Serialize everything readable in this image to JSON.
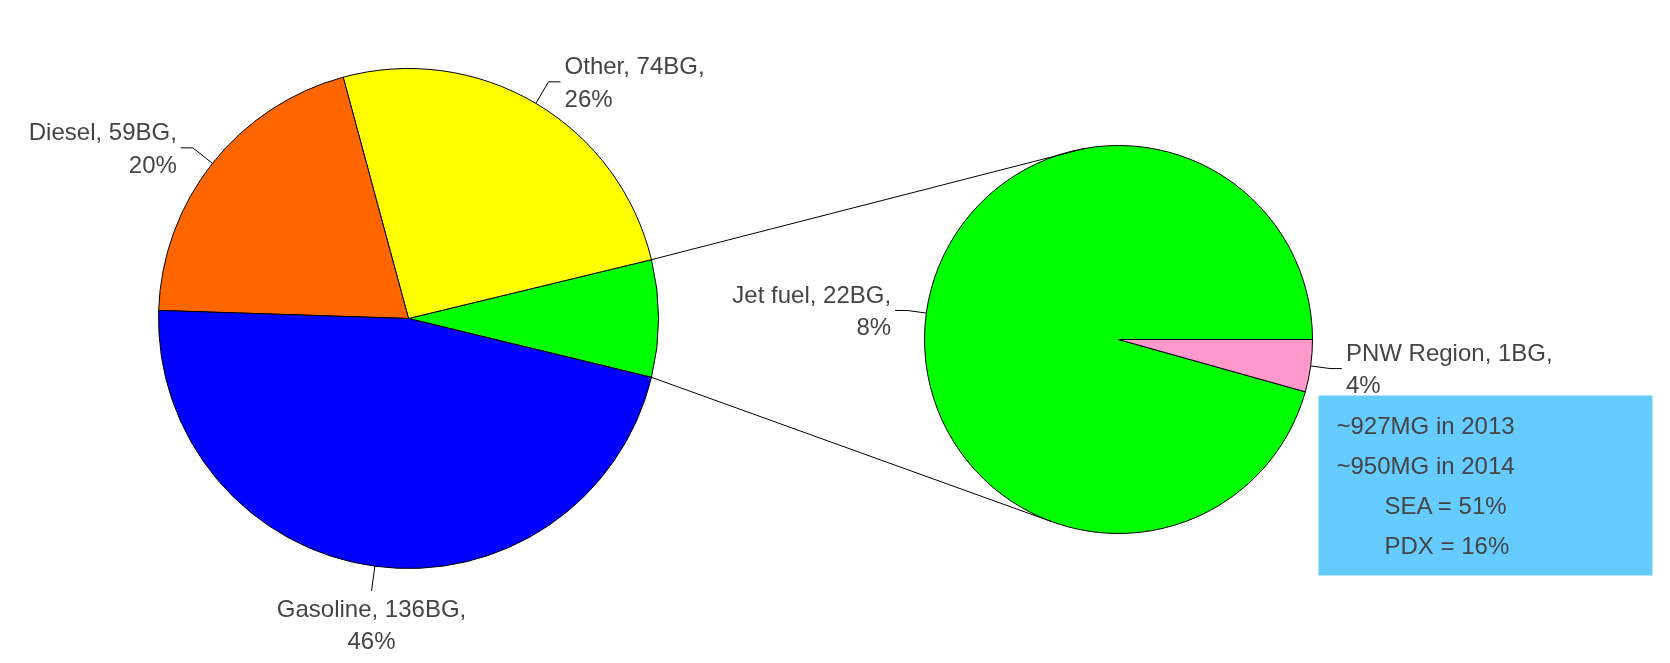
{
  "chart_data": [
    {
      "type": "pie",
      "categories": [
        null,
        "Other",
        "Diesel",
        "Gasoline"
      ],
      "values": [
        22,
        74,
        59,
        136
      ],
      "colors": [
        "#00ff00",
        "#ffff00",
        "#ff6600",
        "#0000ff"
      ],
      "value_labels": [
        null,
        "74BG, 26%",
        "59BG, 20%",
        "136BG, 46%"
      ]
    },
    {
      "type": "pie",
      "categories": [
        "Jet fuel",
        "PNW Region"
      ],
      "values": [
        22,
        1
      ],
      "colors": [
        "#00ff00",
        "#ff99cc"
      ],
      "value_labels": [
        "22BG, 8%",
        "1BG, 4%"
      ],
      "annotations": [
        "~927MG in 2013",
        "~950MG in 2014",
        "SEA = 51%",
        "PDX = 16%"
      ]
    }
  ]
}
